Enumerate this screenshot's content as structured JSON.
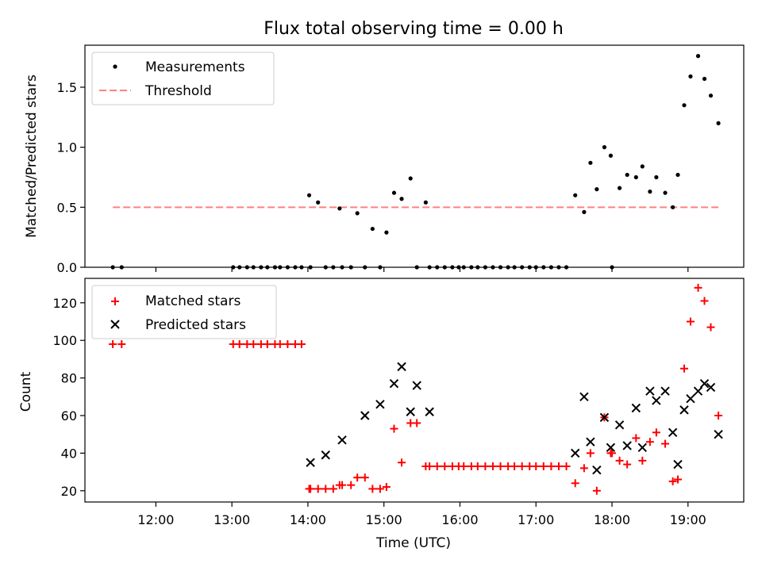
{
  "chart_data": [
    {
      "type": "scatter",
      "title": "Flux total observing time = 0.00 h",
      "xlabel": "",
      "ylabel": "Matched/Predicted stars",
      "xlim": [
        "11:04",
        "19:44"
      ],
      "ylim": [
        0,
        1.85
      ],
      "yticks": [
        "0.0",
        "0.5",
        "1.0",
        "1.5"
      ],
      "grid": false,
      "legend_position": "upper-left",
      "series": [
        {
          "name": "Measurements",
          "marker": "dot",
          "color": "#000000",
          "x": [
            "11:26",
            "11:33",
            "13:01",
            "13:06",
            "13:12",
            "13:17",
            "13:23",
            "13:28",
            "13:34",
            "13:38",
            "13:44",
            "13:50",
            "13:55",
            "14:01",
            "14:02",
            "14:08",
            "14:14",
            "14:20",
            "14:25",
            "14:27",
            "14:34",
            "14:39",
            "14:45",
            "14:51",
            "14:57",
            "15:02",
            "15:08",
            "15:14",
            "15:21",
            "15:26",
            "15:33",
            "15:36",
            "15:42",
            "15:48",
            "15:54",
            "15:59",
            "16:03",
            "16:09",
            "16:14",
            "16:20",
            "16:26",
            "16:32",
            "16:38",
            "16:43",
            "16:49",
            "16:55",
            "17:00",
            "17:06",
            "17:12",
            "17:18",
            "17:24",
            "17:31",
            "17:38",
            "17:43",
            "17:48",
            "17:54",
            "17:59",
            "18:00",
            "18:06",
            "18:12",
            "18:19",
            "18:24",
            "18:30",
            "18:35",
            "18:42",
            "18:48",
            "18:52",
            "18:57",
            "19:02",
            "19:08",
            "19:13",
            "19:18",
            "19:24"
          ],
          "y": [
            0,
            0,
            0,
            0,
            0,
            0,
            0,
            0,
            0,
            0,
            0,
            0,
            0,
            0.6,
            0,
            0.54,
            0,
            0,
            0.49,
            0,
            0,
            0.45,
            0,
            0.32,
            0,
            0.29,
            0.62,
            0.57,
            0.74,
            0,
            0.54,
            0,
            0,
            0,
            0,
            0,
            0,
            0,
            0,
            0,
            0,
            0,
            0,
            0,
            0,
            0,
            0,
            0,
            0,
            0,
            0,
            0.6,
            0.46,
            0.87,
            0.65,
            1.0,
            0.93,
            0,
            0.66,
            0.77,
            0.75,
            0.84,
            0.63,
            0.75,
            0.62,
            0.5,
            0.77,
            1.35,
            1.59,
            1.76,
            1.57,
            1.43,
            1.2
          ]
        },
        {
          "name": "Threshold",
          "style": "dashed",
          "color": "#ff8080",
          "x": [
            "11:26",
            "19:24"
          ],
          "y": [
            0.5,
            0.5
          ]
        }
      ]
    },
    {
      "type": "scatter",
      "title": "",
      "xlabel": "Time (UTC)",
      "ylabel": "Count",
      "xlim": [
        "11:04",
        "19:44"
      ],
      "ylim": [
        14,
        133
      ],
      "xticks": [
        "12:00",
        "13:00",
        "14:00",
        "15:00",
        "16:00",
        "17:00",
        "18:00",
        "19:00"
      ],
      "yticks": [
        "20",
        "40",
        "60",
        "80",
        "100",
        "120"
      ],
      "grid": false,
      "legend_position": "upper-left",
      "series": [
        {
          "name": "Matched stars",
          "marker": "plus",
          "color": "#ff0000",
          "x": [
            "11:26",
            "11:33",
            "13:01",
            "13:06",
            "13:12",
            "13:17",
            "13:23",
            "13:28",
            "13:34",
            "13:38",
            "13:44",
            "13:50",
            "13:55",
            "14:01",
            "14:02",
            "14:08",
            "14:14",
            "14:20",
            "14:25",
            "14:27",
            "14:34",
            "14:39",
            "14:45",
            "14:51",
            "14:57",
            "15:02",
            "15:08",
            "15:14",
            "15:21",
            "15:26",
            "15:33",
            "15:36",
            "15:42",
            "15:48",
            "15:54",
            "15:59",
            "16:03",
            "16:09",
            "16:14",
            "16:20",
            "16:26",
            "16:32",
            "16:38",
            "16:43",
            "16:49",
            "16:55",
            "17:00",
            "17:06",
            "17:12",
            "17:18",
            "17:24",
            "17:31",
            "17:38",
            "17:43",
            "17:48",
            "17:54",
            "17:59",
            "18:00",
            "18:06",
            "18:12",
            "18:19",
            "18:24",
            "18:30",
            "18:35",
            "18:42",
            "18:48",
            "18:52",
            "18:57",
            "19:02",
            "19:08",
            "19:13",
            "19:18",
            "19:24"
          ],
          "y": [
            98,
            98,
            98,
            98,
            98,
            98,
            98,
            98,
            98,
            98,
            98,
            98,
            98,
            21,
            21,
            21,
            21,
            21,
            23,
            23,
            23,
            27,
            27,
            21,
            21,
            22,
            53,
            35,
            56,
            56,
            33,
            33,
            33,
            33,
            33,
            33,
            33,
            33,
            33,
            33,
            33,
            33,
            33,
            33,
            33,
            33,
            33,
            33,
            33,
            33,
            33,
            24,
            32,
            40,
            20,
            59,
            40,
            40,
            36,
            34,
            48,
            36,
            46,
            51,
            45,
            25,
            26,
            85,
            110,
            128,
            121,
            107,
            60
          ]
        },
        {
          "name": "Predicted stars",
          "marker": "x",
          "color": "#000000",
          "x": [
            "14:02",
            "14:14",
            "14:27",
            "14:45",
            "14:57",
            "15:08",
            "15:14",
            "15:21",
            "15:26",
            "15:36",
            "17:31",
            "17:38",
            "17:43",
            "17:48",
            "17:54",
            "17:59",
            "18:06",
            "18:12",
            "18:19",
            "18:24",
            "18:30",
            "18:35",
            "18:42",
            "18:48",
            "18:52",
            "18:57",
            "19:02",
            "19:08",
            "19:13",
            "19:18",
            "19:24"
          ],
          "y": [
            35,
            39,
            47,
            60,
            66,
            77,
            86,
            62,
            76,
            62,
            40,
            70,
            46,
            31,
            59,
            43,
            55,
            44,
            64,
            43,
            73,
            68,
            73,
            51,
            34,
            63,
            69,
            73,
            77,
            75,
            50
          ]
        }
      ]
    }
  ]
}
